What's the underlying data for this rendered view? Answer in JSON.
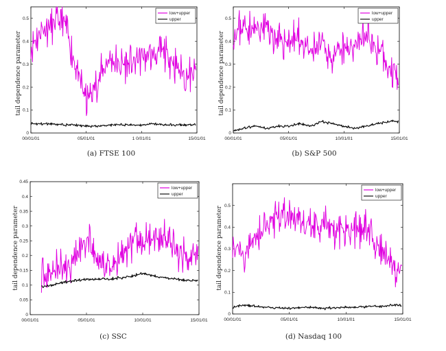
{
  "colors": {
    "low_upper": "#e000e0",
    "upper": "#111111"
  },
  "chart_data": [
    {
      "type": "line",
      "caption": "(a) FTSE 100",
      "ylabel": "tail dependence parameter",
      "xlabel": "",
      "x_tick_labels": [
        "00/01/01",
        "05/01/01",
        "10/01/01",
        "15/01/01"
      ],
      "x_tick_text": [
        "00/01/01",
        "05/01/01",
        "1 0/01/01",
        "15/01/01"
      ],
      "y_tick_labels": [
        "0",
        "0.1",
        "0.2",
        "0.3",
        "0.4",
        "0.5"
      ],
      "ylim": [
        0,
        0.55
      ],
      "legend": {
        "placement": "top-right",
        "entries": [
          "low+upper",
          "upper"
        ]
      },
      "series": [
        {
          "name": "low+upper",
          "x": [
            "00/01/01",
            "01/01/01",
            "02/01/01",
            "03/01/01",
            "04/01/01",
            "05/01/01",
            "06/01/01",
            "07/01/01",
            "08/01/01",
            "09/01/01",
            "10/01/01",
            "11/01/01",
            "12/01/01",
            "13/01/01",
            "14/01/01"
          ],
          "values": [
            0.38,
            0.45,
            0.47,
            0.49,
            0.3,
            0.14,
            0.22,
            0.32,
            0.3,
            0.3,
            0.33,
            0.34,
            0.36,
            0.3,
            0.25
          ]
        },
        {
          "name": "upper",
          "x": [
            "00/01/01",
            "01/01/01",
            "02/01/01",
            "03/01/01",
            "04/01/01",
            "05/01/01",
            "06/01/01",
            "07/01/01",
            "08/01/01",
            "09/01/01",
            "10/01/01",
            "11/01/01",
            "12/01/01",
            "13/01/01",
            "14/01/01"
          ],
          "values": [
            0.04,
            0.04,
            0.04,
            0.035,
            0.035,
            0.03,
            0.03,
            0.035,
            0.035,
            0.035,
            0.035,
            0.04,
            0.035,
            0.035,
            0.035
          ]
        }
      ]
    },
    {
      "type": "line",
      "caption": "(b) S&P 500",
      "ylabel": "tail dependence parameter",
      "xlabel": "",
      "x_tick_labels": [
        "00/01/01",
        "05/01/01",
        "10/01/01",
        "15/01/01"
      ],
      "x_tick_text": [
        "00/01/01",
        "05/01/01",
        "10/01/01",
        "15/01/01"
      ],
      "y_tick_labels": [
        "0",
        "0.1",
        "0.2",
        "0.3",
        "0.4",
        "0.5"
      ],
      "ylim": [
        0,
        0.55
      ],
      "legend": {
        "placement": "top-right",
        "entries": [
          "low+upper",
          "upper"
        ]
      },
      "series": [
        {
          "name": "low+upper",
          "x": [
            "00/01/01",
            "01/01/01",
            "02/01/01",
            "03/01/01",
            "04/01/01",
            "05/01/01",
            "06/01/01",
            "07/01/01",
            "08/01/01",
            "09/01/01",
            "10/01/01",
            "11/01/01",
            "12/01/01",
            "13/01/01",
            "14/01/01"
          ],
          "values": [
            0.44,
            0.46,
            0.45,
            0.47,
            0.4,
            0.4,
            0.41,
            0.35,
            0.38,
            0.32,
            0.36,
            0.4,
            0.42,
            0.36,
            0.28
          ]
        },
        {
          "name": "upper",
          "x": [
            "00/01/01",
            "01/01/01",
            "02/01/01",
            "03/01/01",
            "04/01/01",
            "05/01/01",
            "06/01/01",
            "07/01/01",
            "08/01/01",
            "09/01/01",
            "10/01/01",
            "11/01/01",
            "12/01/01",
            "13/01/01",
            "14/01/01"
          ],
          "values": [
            0.01,
            0.02,
            0.03,
            0.02,
            0.03,
            0.03,
            0.04,
            0.03,
            0.05,
            0.04,
            0.03,
            0.02,
            0.03,
            0.04,
            0.05
          ]
        }
      ]
    },
    {
      "type": "line",
      "caption": "(c) SSC",
      "ylabel": "tail dependence parameter",
      "xlabel": "",
      "x_tick_labels": [
        "00/01/01",
        "05/01/01",
        "10/01/01",
        "15/01/01"
      ],
      "x_tick_text": [
        "00/01/01",
        "05/01/01",
        "10/01/01",
        "15/01/01"
      ],
      "y_tick_labels": [
        "0",
        "0.05",
        "0.1",
        "0.15",
        "0.2",
        "0.25",
        "0.3",
        "0.35",
        "0.4",
        "0.45"
      ],
      "ylim": [
        0,
        0.45
      ],
      "legend": {
        "placement": "top-right",
        "entries": [
          "low+upper",
          "upper"
        ]
      },
      "series": [
        {
          "name": "low+upper",
          "x": [
            "01/01/01",
            "02/01/01",
            "03/01/01",
            "04/01/01",
            "05/01/01",
            "06/01/01",
            "07/01/01",
            "08/01/01",
            "09/01/01",
            "10/01/01",
            "11/01/01",
            "12/01/01",
            "13/01/01",
            "14/01/01"
          ],
          "values": [
            0.12,
            0.15,
            0.16,
            0.2,
            0.25,
            0.18,
            0.15,
            0.2,
            0.25,
            0.24,
            0.27,
            0.25,
            0.22,
            0.2
          ]
        },
        {
          "name": "upper",
          "x": [
            "01/01/01",
            "02/01/01",
            "03/01/01",
            "04/01/01",
            "05/01/01",
            "06/01/01",
            "07/01/01",
            "08/01/01",
            "09/01/01",
            "10/01/01",
            "11/01/01",
            "12/01/01",
            "13/01/01",
            "14/01/01"
          ],
          "values": [
            0.095,
            0.1,
            0.11,
            0.115,
            0.12,
            0.12,
            0.12,
            0.125,
            0.13,
            0.14,
            0.13,
            0.125,
            0.12,
            0.115
          ]
        }
      ]
    },
    {
      "type": "line",
      "caption": "(d) Nasdaq 100",
      "ylabel": "tail dependence parameter",
      "xlabel": "",
      "x_tick_labels": [
        "00/01/01",
        "05/01/01",
        "10/01/01",
        "15/01/01"
      ],
      "x_tick_text": [
        "00/01/01",
        "05/01/01",
        "10/01/01",
        "15/01/01"
      ],
      "y_tick_labels": [
        "0",
        "0.1",
        "0.2",
        "0.3",
        "0.4",
        "0.5"
      ],
      "ylim": [
        0,
        0.6
      ],
      "legend": {
        "placement": "top-right",
        "entries": [
          "low+upper",
          "upper"
        ]
      },
      "series": [
        {
          "name": "low+upper",
          "x": [
            "00/01/01",
            "01/01/01",
            "02/01/01",
            "03/01/01",
            "04/01/01",
            "05/01/01",
            "06/01/01",
            "07/01/01",
            "08/01/01",
            "09/01/01",
            "10/01/01",
            "11/01/01",
            "12/01/01",
            "13/01/01",
            "14/01/01"
          ],
          "values": [
            0.32,
            0.28,
            0.35,
            0.42,
            0.46,
            0.45,
            0.44,
            0.4,
            0.42,
            0.38,
            0.4,
            0.39,
            0.38,
            0.3,
            0.22
          ]
        },
        {
          "name": "upper",
          "x": [
            "00/01/01",
            "01/01/01",
            "02/01/01",
            "03/01/01",
            "04/01/01",
            "05/01/01",
            "06/01/01",
            "07/01/01",
            "08/01/01",
            "09/01/01",
            "10/01/01",
            "11/01/01",
            "12/01/01",
            "13/01/01",
            "14/01/01"
          ],
          "values": [
            0.03,
            0.04,
            0.035,
            0.03,
            0.03,
            0.025,
            0.03,
            0.03,
            0.025,
            0.03,
            0.03,
            0.03,
            0.035,
            0.035,
            0.04
          ]
        }
      ]
    }
  ]
}
